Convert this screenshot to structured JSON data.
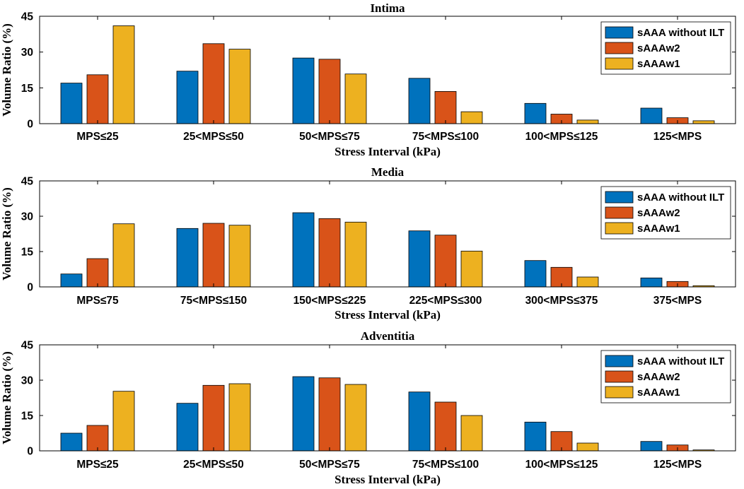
{
  "colors": {
    "series": [
      "#0072BD",
      "#D95319",
      "#EDB120"
    ],
    "axis": "#000000",
    "background": "#ffffff"
  },
  "chart_data": [
    {
      "type": "bar",
      "title": "Intima",
      "xlabel": "Stress Interval (kPa)",
      "ylabel": "Volume Ratio (%)",
      "ylim": [
        0,
        45
      ],
      "yticks": [
        0,
        15,
        30,
        45
      ],
      "legend_position": "top-right",
      "categories": [
        "MPS≤25",
        "25<MPS≤50",
        "50<MPS≤75",
        "75<MPS≤100",
        "100<MPS≤125",
        "125<MPS"
      ],
      "series": [
        {
          "name": "sAAA without ILT",
          "values": [
            17,
            22,
            27.5,
            19,
            8.5,
            6.5
          ]
        },
        {
          "name": "sAAAw2",
          "values": [
            20.5,
            33.5,
            27,
            13.5,
            4,
            2.5
          ]
        },
        {
          "name": "sAAAw1",
          "values": [
            41,
            31.2,
            20.8,
            5,
            1.5,
            1.2
          ]
        }
      ]
    },
    {
      "type": "bar",
      "title": "Media",
      "xlabel": "Stress Interval (kPa)",
      "ylabel": "Volume Ratio (%)",
      "ylim": [
        0,
        45
      ],
      "yticks": [
        0,
        15,
        30,
        45
      ],
      "legend_position": "top-right",
      "categories": [
        "MPS≤75",
        "75<MPS≤150",
        "150<MPS≤225",
        "225<MPS≤300",
        "300<MPS≤375",
        "375<MPS"
      ],
      "series": [
        {
          "name": "sAAA without ILT",
          "values": [
            5.5,
            24.8,
            31.5,
            23.8,
            11.2,
            3.8
          ]
        },
        {
          "name": "sAAAw2",
          "values": [
            12,
            27,
            29,
            22,
            8.3,
            2.3
          ]
        },
        {
          "name": "sAAAw1",
          "values": [
            26.8,
            26.2,
            27.5,
            15.2,
            4.2,
            0.5
          ]
        }
      ]
    },
    {
      "type": "bar",
      "title": "Adventitia",
      "xlabel": "Stress Interval (kPa)",
      "ylabel": "Volume Ratio (%)",
      "ylim": [
        0,
        45
      ],
      "yticks": [
        0,
        15,
        30,
        45
      ],
      "legend_position": "top-right",
      "categories": [
        "MPS≤25",
        "25<MPS≤50",
        "50<MPS≤75",
        "75<MPS≤100",
        "100<MPS≤125",
        "125<MPS"
      ],
      "series": [
        {
          "name": "sAAA without ILT",
          "values": [
            7.5,
            20.2,
            31.5,
            25,
            12.2,
            4
          ]
        },
        {
          "name": "sAAAw2",
          "values": [
            10.8,
            27.8,
            31,
            20.7,
            8.2,
            2.5
          ]
        },
        {
          "name": "sAAAw1",
          "values": [
            25.3,
            28.5,
            28.2,
            15,
            3.3,
            0.4
          ]
        }
      ]
    }
  ]
}
